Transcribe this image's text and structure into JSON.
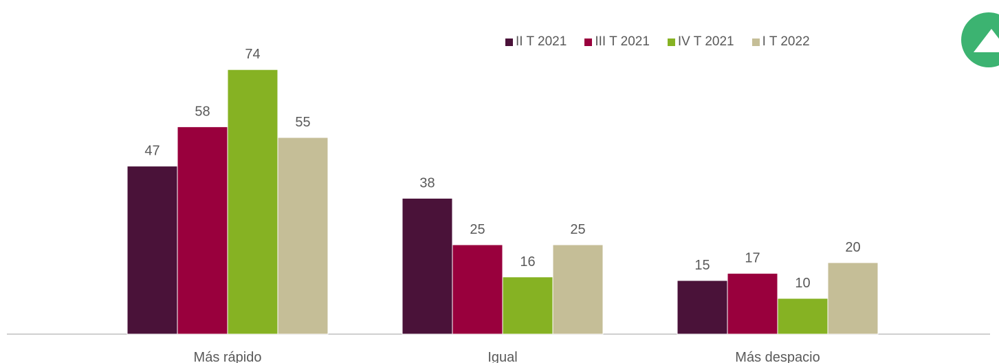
{
  "chart_data": {
    "type": "bar",
    "title": "",
    "xlabel": "",
    "ylabel": "",
    "categories": [
      "Más rápido",
      "Igual",
      "Más despacio"
    ],
    "series": [
      {
        "name": "II T 2021",
        "color": "#4a1239",
        "values": [
          47,
          38,
          15
        ]
      },
      {
        "name": "III T 2021",
        "color": "#99003d",
        "values": [
          58,
          25,
          17
        ]
      },
      {
        "name": "IV T 2021",
        "color": "#86b223",
        "values": [
          74,
          16,
          10
        ]
      },
      {
        "name": "I T 2022",
        "color": "#c5be97",
        "values": [
          55,
          25,
          20
        ]
      }
    ],
    "ylim": [
      0,
      80
    ],
    "grid": false,
    "legend_position": "top-right",
    "data_labels": true
  },
  "badge": {
    "icon": "up-arrow-icon",
    "color": "#3cb371"
  }
}
